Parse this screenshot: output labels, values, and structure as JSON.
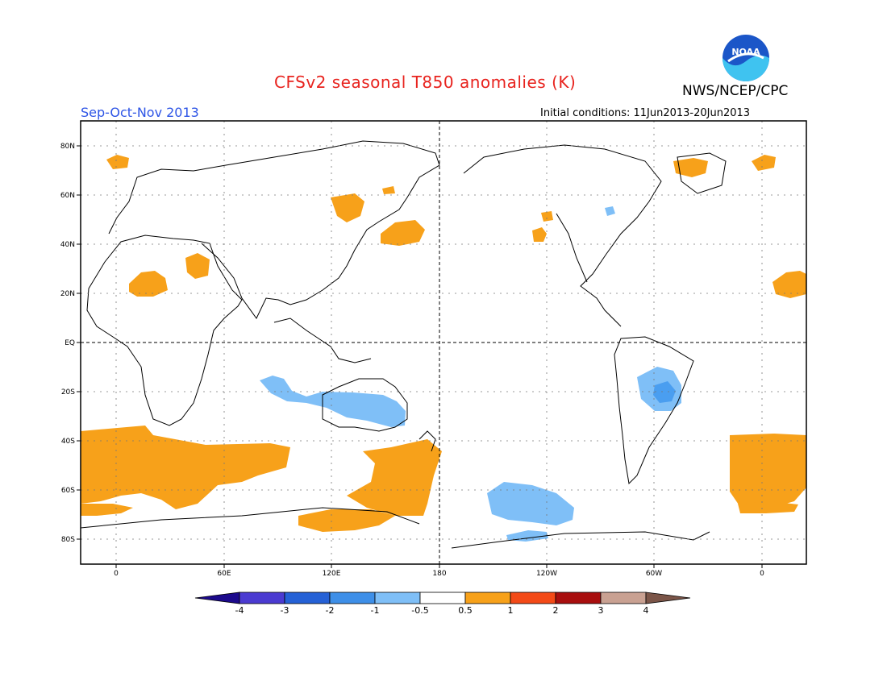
{
  "header": {
    "title": "CFSv2 seasonal T850 anomalies (K)",
    "agency": "NWS/NCEP/CPC",
    "season": "Sep-Oct-Nov 2013",
    "initial_conditions": "Initial conditions: 11Jun2013-20Jun2013",
    "logo_text": "NOAA"
  },
  "map": {
    "lat_labels": [
      "80N",
      "60N",
      "40N",
      "20N",
      "EQ",
      "20S",
      "40S",
      "60S",
      "80S"
    ],
    "lon_labels": [
      "0",
      "60E",
      "120E",
      "180",
      "120W",
      "60W",
      "0"
    ],
    "colors": {
      "warm_0.5_1": "#f7a11a",
      "cool_-1_-0.5": "#7fbff7",
      "cool_-2_-1": "#4a9ef0",
      "coast": "#000000",
      "grid": "#777777"
    }
  },
  "colorbar": {
    "labels": [
      "-4",
      "-3",
      "-2",
      "-1",
      "-0.5",
      "0.5",
      "1",
      "2",
      "3",
      "4"
    ],
    "colors": [
      "#1c0a8c",
      "#4b3bd1",
      "#2561d6",
      "#3e8fe8",
      "#7fbff7",
      "#ffffff",
      "#f7a11a",
      "#f34a17",
      "#a80e0e",
      "#c9a192",
      "#7b5548"
    ]
  }
}
